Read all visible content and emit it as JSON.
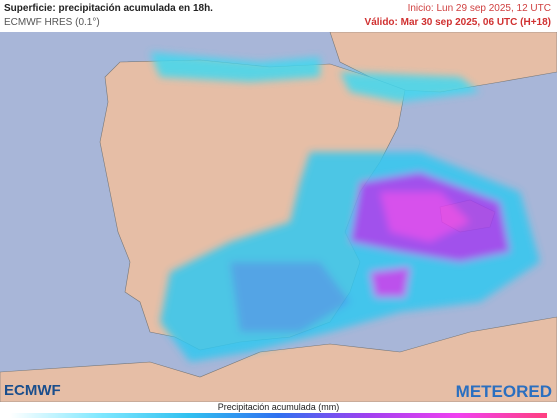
{
  "header": {
    "title": "Superficie: precipitación acumulada en 18h.",
    "model": "ECMWF HRES (0.1°)",
    "init": "Inicio: Lun 29 sep 2025, 12 UTC",
    "valid": "Válido: Mar 30 sep 2025, 06 UTC (H+18)"
  },
  "logos": {
    "left": "ECMWF",
    "right": "METEORED"
  },
  "colorbar": {
    "label": "Precipitación acumulada (mm)"
  }
}
